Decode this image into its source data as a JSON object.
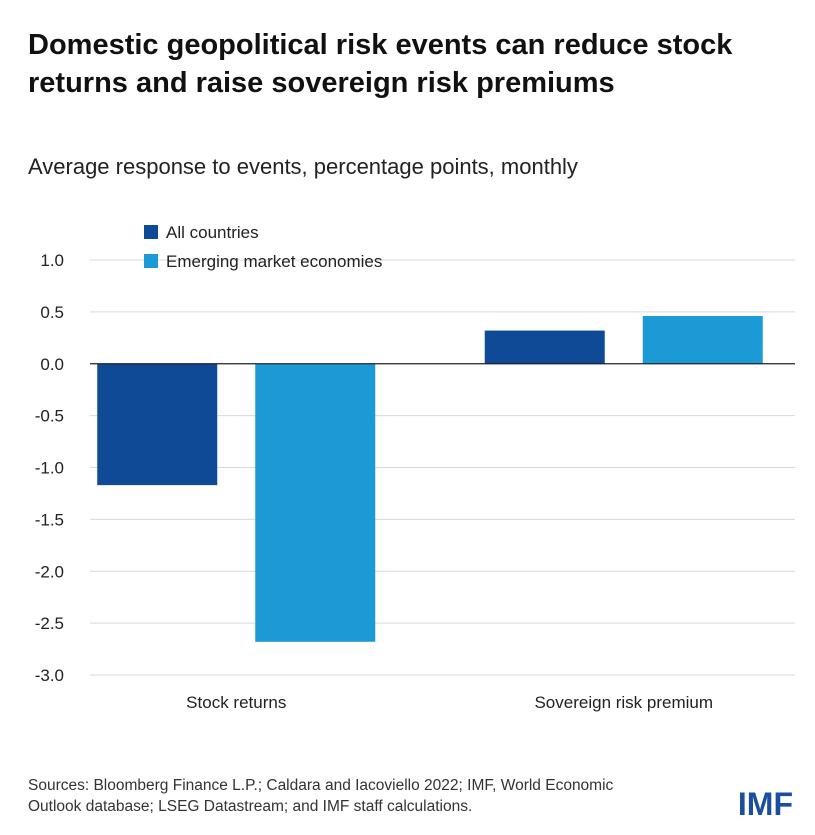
{
  "title": "Domestic geopolitical risk events can reduce stock returns and raise sovereign risk premiums",
  "subtitle": "Average response to events, percentage points, monthly",
  "sources": "Sources: Bloomberg Finance L.P.; Caldara and Iacoviello 2022; IMF, World Economic Outlook database; LSEG Datastream; and IMF staff calculations.",
  "logo": "IMF",
  "colors": {
    "all_countries": "#0f4a96",
    "emerging": "#1b9ad6",
    "grid": "#d9d9d9",
    "zero_line": "#222222"
  },
  "chart_data": {
    "type": "bar",
    "categories": [
      "Stock returns",
      "Sovereign risk premium"
    ],
    "series": [
      {
        "name": "All countries",
        "values": [
          -1.17,
          0.32
        ]
      },
      {
        "name": "Emerging market economies",
        "values": [
          -2.68,
          0.46
        ]
      }
    ],
    "ylim": [
      -3.0,
      1.0
    ],
    "yticks": [
      "1.0",
      "0.5",
      "0.0",
      "-0.5",
      "-1.0",
      "-1.5",
      "-2.0",
      "-2.5",
      "-3.0"
    ],
    "grid": true,
    "legend": "top-left"
  }
}
